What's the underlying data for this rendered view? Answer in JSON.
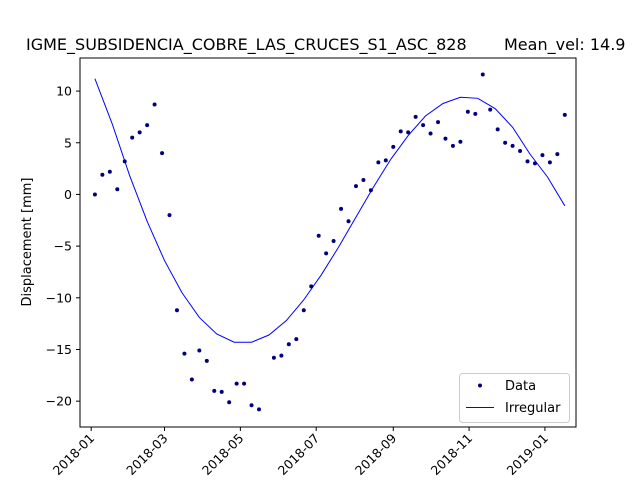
{
  "chart_data": {
    "type": "line",
    "title": "IGME_SUBSIDENCIA_COBRE_LAS_CRUCES_S1_ASC_828",
    "subtitle": "Mean_vel: 14.9",
    "xlabel": "",
    "ylabel": "Displacement [mm]",
    "xlim": [
      "2017-12-23",
      "2019-01-26"
    ],
    "ylim": [
      -22.5,
      13.2
    ],
    "x_ticks": [
      "2018-01",
      "2018-03",
      "2018-05",
      "2018-07",
      "2018-09",
      "2018-11",
      "2019-01"
    ],
    "y_ticks": [
      -20,
      -15,
      -10,
      -5,
      0,
      5,
      10
    ],
    "grid": false,
    "legend_position": "lower-right",
    "series": [
      {
        "name": "Data",
        "style": "points",
        "color": "#00007f",
        "x": [
          "2018-01-04",
          "2018-01-10",
          "2018-01-16",
          "2018-01-22",
          "2018-01-28",
          "2018-02-03",
          "2018-02-09",
          "2018-02-15",
          "2018-02-21",
          "2018-02-27",
          "2018-03-05",
          "2018-03-11",
          "2018-03-17",
          "2018-03-23",
          "2018-03-29",
          "2018-04-04",
          "2018-04-10",
          "2018-04-16",
          "2018-04-22",
          "2018-04-28",
          "2018-05-04",
          "2018-05-10",
          "2018-05-16",
          "2018-05-28",
          "2018-06-03",
          "2018-06-09",
          "2018-06-15",
          "2018-06-21",
          "2018-06-27",
          "2018-07-03",
          "2018-07-09",
          "2018-07-15",
          "2018-07-21",
          "2018-07-27",
          "2018-08-02",
          "2018-08-08",
          "2018-08-14",
          "2018-08-20",
          "2018-08-26",
          "2018-09-01",
          "2018-09-07",
          "2018-09-13",
          "2018-09-19",
          "2018-09-25",
          "2018-10-01",
          "2018-10-07",
          "2018-10-13",
          "2018-10-19",
          "2018-10-25",
          "2018-10-31",
          "2018-11-06",
          "2018-11-12",
          "2018-11-18",
          "2018-11-24",
          "2018-11-30",
          "2018-12-06",
          "2018-12-12",
          "2018-12-18",
          "2018-12-24",
          "2018-12-30",
          "2019-01-05",
          "2019-01-11",
          "2019-01-17"
        ],
        "values": [
          0.0,
          1.9,
          2.2,
          0.5,
          3.2,
          5.5,
          6.0,
          6.7,
          8.7,
          4.0,
          -2.0,
          -11.2,
          -15.4,
          -17.9,
          -15.1,
          -16.1,
          -19.0,
          -19.1,
          -20.1,
          -18.3,
          -18.3,
          -20.4,
          -20.8,
          -15.8,
          -15.6,
          -14.5,
          -14.0,
          -11.2,
          -8.9,
          -4.0,
          -5.7,
          -4.5,
          -1.4,
          -2.6,
          0.8,
          1.4,
          0.4,
          3.1,
          3.3,
          4.6,
          6.1,
          6.0,
          7.5,
          6.7,
          5.9,
          7.0,
          5.4,
          4.7,
          5.1,
          8.0,
          7.8,
          11.6,
          8.2,
          6.3,
          5.0,
          4.7,
          4.2,
          3.2,
          3.0,
          3.8,
          3.1,
          3.9,
          7.7
        ]
      },
      {
        "name": "Irregular",
        "style": "line",
        "color": "#0000ff",
        "x": [
          "2018-01-04",
          "2018-01-18",
          "2018-02-01",
          "2018-02-15",
          "2018-03-01",
          "2018-03-15",
          "2018-03-29",
          "2018-04-12",
          "2018-04-26",
          "2018-05-10",
          "2018-05-24",
          "2018-06-07",
          "2018-06-21",
          "2018-07-05",
          "2018-07-19",
          "2018-08-02",
          "2018-08-16",
          "2018-08-30",
          "2018-09-13",
          "2018-09-27",
          "2018-10-11",
          "2018-10-25",
          "2018-11-08",
          "2018-11-22",
          "2018-12-06",
          "2018-12-20",
          "2019-01-03",
          "2019-01-17"
        ],
        "values": [
          11.2,
          6.8,
          1.8,
          -2.6,
          -6.4,
          -9.5,
          -11.9,
          -13.5,
          -14.3,
          -14.3,
          -13.6,
          -12.2,
          -10.2,
          -7.8,
          -5.1,
          -2.2,
          0.7,
          3.4,
          5.7,
          7.6,
          8.8,
          9.4,
          9.3,
          8.3,
          6.5,
          3.9,
          1.7,
          -1.1
        ]
      }
    ]
  }
}
